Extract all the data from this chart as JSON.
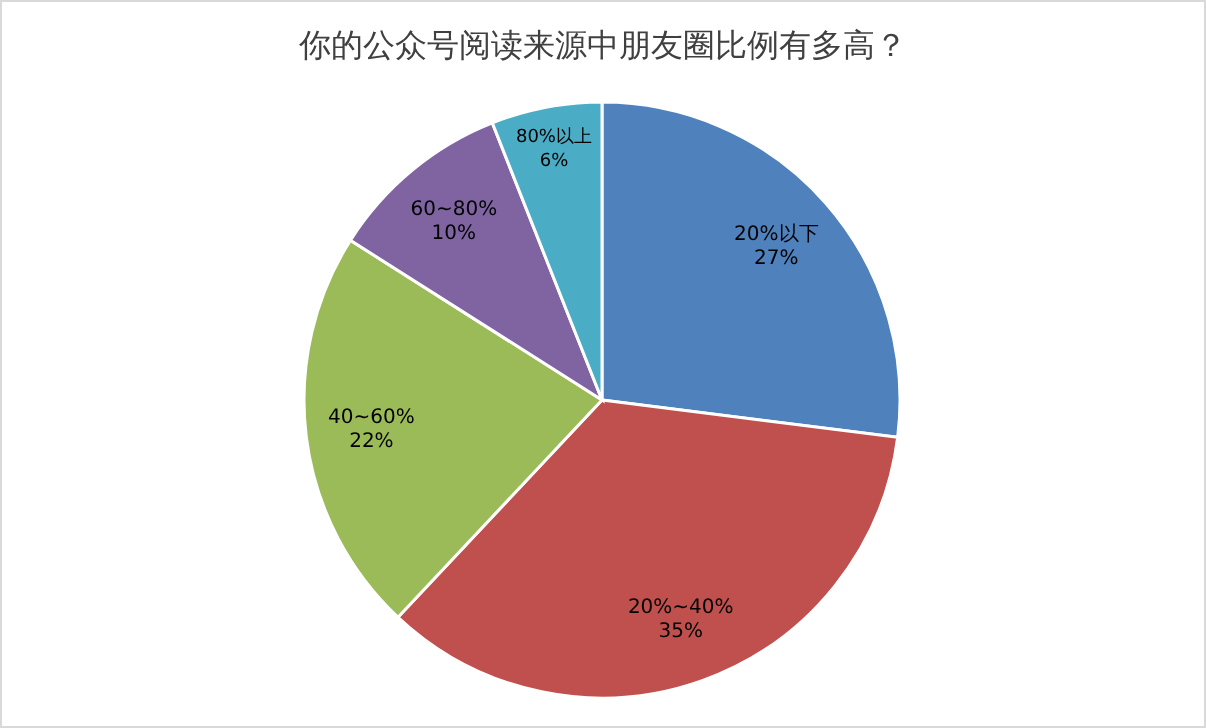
{
  "chart_data": {
    "type": "pie",
    "title": "你的公众号阅读来源中朋友圈比例有多高？",
    "categories": [
      "20%以下",
      "20%~40%",
      "40~60%",
      "60~80%",
      "80%以上"
    ],
    "values": [
      27,
      35,
      22,
      10,
      6
    ],
    "colors": [
      "#4f81bd",
      "#c0504d",
      "#9bbb59",
      "#8064a2",
      "#4bacc6"
    ],
    "value_labels": [
      "27%",
      "35%",
      "22%",
      "10%",
      "6%"
    ],
    "legend": false
  }
}
